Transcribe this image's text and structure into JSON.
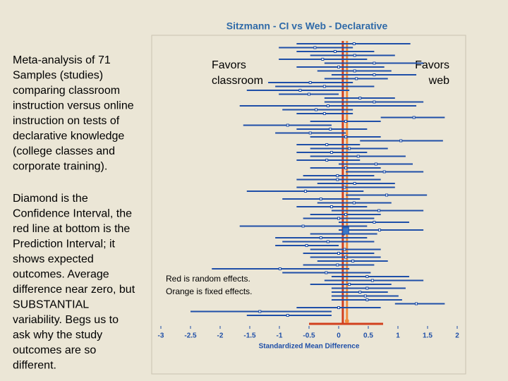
{
  "left_text": {
    "paragraph_1": [
      "Meta-analysis of 71",
      "Samples (studies)",
      "comparing classroom",
      "instruction versus online",
      "instruction on tests of",
      "declarative knowledge",
      "(college classes and",
      "corporate training)."
    ],
    "paragraph_2": [
      "Diamond is the",
      "Confidence Interval, the",
      "red line at bottom is the",
      "Prediction Interval; it",
      "shows expected",
      "outcomes.  Average",
      "difference near zero, but",
      "SUBSTANTIAL",
      "variability.  Begs us to",
      "ask why the study",
      "outcomes are so",
      "different."
    ]
  },
  "chart_data": {
    "type": "forest",
    "title": "Sitzmann - CI vs Web - Declarative",
    "x_label": "Standardized Mean Difference",
    "annotations": {
      "favors_left": [
        "Favors",
        "classroom"
      ],
      "favors_right": [
        "Favors",
        "web"
      ],
      "legend_note": [
        "Red is random effects.",
        "Orange is fixed effects."
      ]
    },
    "xlim": [
      -3,
      2
    ],
    "xticks": [
      -3,
      -2.5,
      -2,
      -1.5,
      -1,
      -0.5,
      0,
      0.5,
      1,
      1.5,
      2
    ],
    "color": "#1f4fa8",
    "values": [
      0.26,
      -0.4,
      -0.06,
      0.27,
      -0.27,
      0.6,
      0,
      0.27,
      0.6,
      0.3,
      -0.48,
      -0.24,
      -0.65,
      -0.5,
      0.36,
      0.6,
      -0.18,
      -0.38,
      -0.24,
      1.27,
      0.12,
      -0.86,
      -0.14,
      -0.48,
      0.12,
      1.05,
      -0.2,
      0.18,
      -0.12,
      0.33,
      -0.2,
      0.63,
      0.12,
      0.77,
      -0.02,
      -0.02,
      0.27,
      0.1,
      -0.56,
      0.81,
      -0.3,
      0.26,
      -0.12,
      0.68,
      0.12,
      0,
      0.6,
      -0.6,
      0.69,
      0.08,
      -0.3,
      -0.18,
      -0.54,
      0.1,
      0,
      0.12,
      0.24,
      -0.02,
      -0.99,
      -0.21,
      0.48,
      0.57,
      0.18,
      0.48,
      0.36,
      0.45,
      0.48,
      1.31,
      0,
      -1.33,
      -0.86
    ],
    "ci_low": [
      -0.71,
      -1.01,
      -0.71,
      -0.48,
      -1.01,
      -0.24,
      -0.71,
      -0.36,
      -0.12,
      -0.24,
      -1.19,
      -1.07,
      -1.55,
      -1.01,
      -0.24,
      -0.24,
      -1.67,
      -0.95,
      -0.71,
      0.71,
      -0.48,
      -1.61,
      -0.71,
      -1.07,
      -0.48,
      0.36,
      -0.71,
      -0.48,
      -0.71,
      -0.48,
      -0.71,
      0,
      -0.48,
      0.12,
      -0.6,
      -0.71,
      -0.36,
      -0.71,
      -1.55,
      0.12,
      -0.95,
      -0.36,
      -0.71,
      -0.12,
      -0.48,
      -0.6,
      0,
      -1.67,
      0,
      -0.48,
      -1.07,
      -0.95,
      -1.07,
      -0.48,
      -0.6,
      -0.48,
      -0.36,
      -0.6,
      -2.14,
      -0.95,
      -0.12,
      -0.24,
      -0.48,
      -0.12,
      -0.12,
      -0.12,
      -0.12,
      0.95,
      -0.71,
      -2.5,
      -1.55
    ],
    "ci_high": [
      1.21,
      0.24,
      0.6,
      0.95,
      0.48,
      1.43,
      0.77,
      0.89,
      1.31,
      0.83,
      0.24,
      0.6,
      0.18,
      0,
      0.95,
      1.43,
      1.31,
      0.24,
      0.24,
      1.79,
      0.71,
      -0.12,
      0.48,
      0.12,
      0.71,
      1.76,
      0.36,
      0.83,
      0.48,
      1.13,
      0.36,
      1.25,
      0.71,
      1.43,
      0.6,
      0.71,
      0.95,
      0.95,
      0.42,
      1.49,
      0.36,
      0.89,
      0.48,
      1.43,
      0.71,
      0.6,
      1.19,
      0.48,
      1.43,
      0.65,
      0.48,
      0.6,
      0,
      0.71,
      0.6,
      0.71,
      0.83,
      0.6,
      0.18,
      0.54,
      1.19,
      1.43,
      0.89,
      1.13,
      0.83,
      1.01,
      1.07,
      1.79,
      0.71,
      -0.12,
      -0.12
    ],
    "random_effects": {
      "color": "#d2401e",
      "value": 0.07,
      "prediction_interval": [
        -0.5,
        0.75
      ]
    },
    "fixed_effects": {
      "color": "#f08a3c",
      "value": 0.14
    },
    "summary": {
      "color": "#3a78c8",
      "value": 0.12,
      "ci": [
        0.07,
        0.17
      ]
    }
  }
}
